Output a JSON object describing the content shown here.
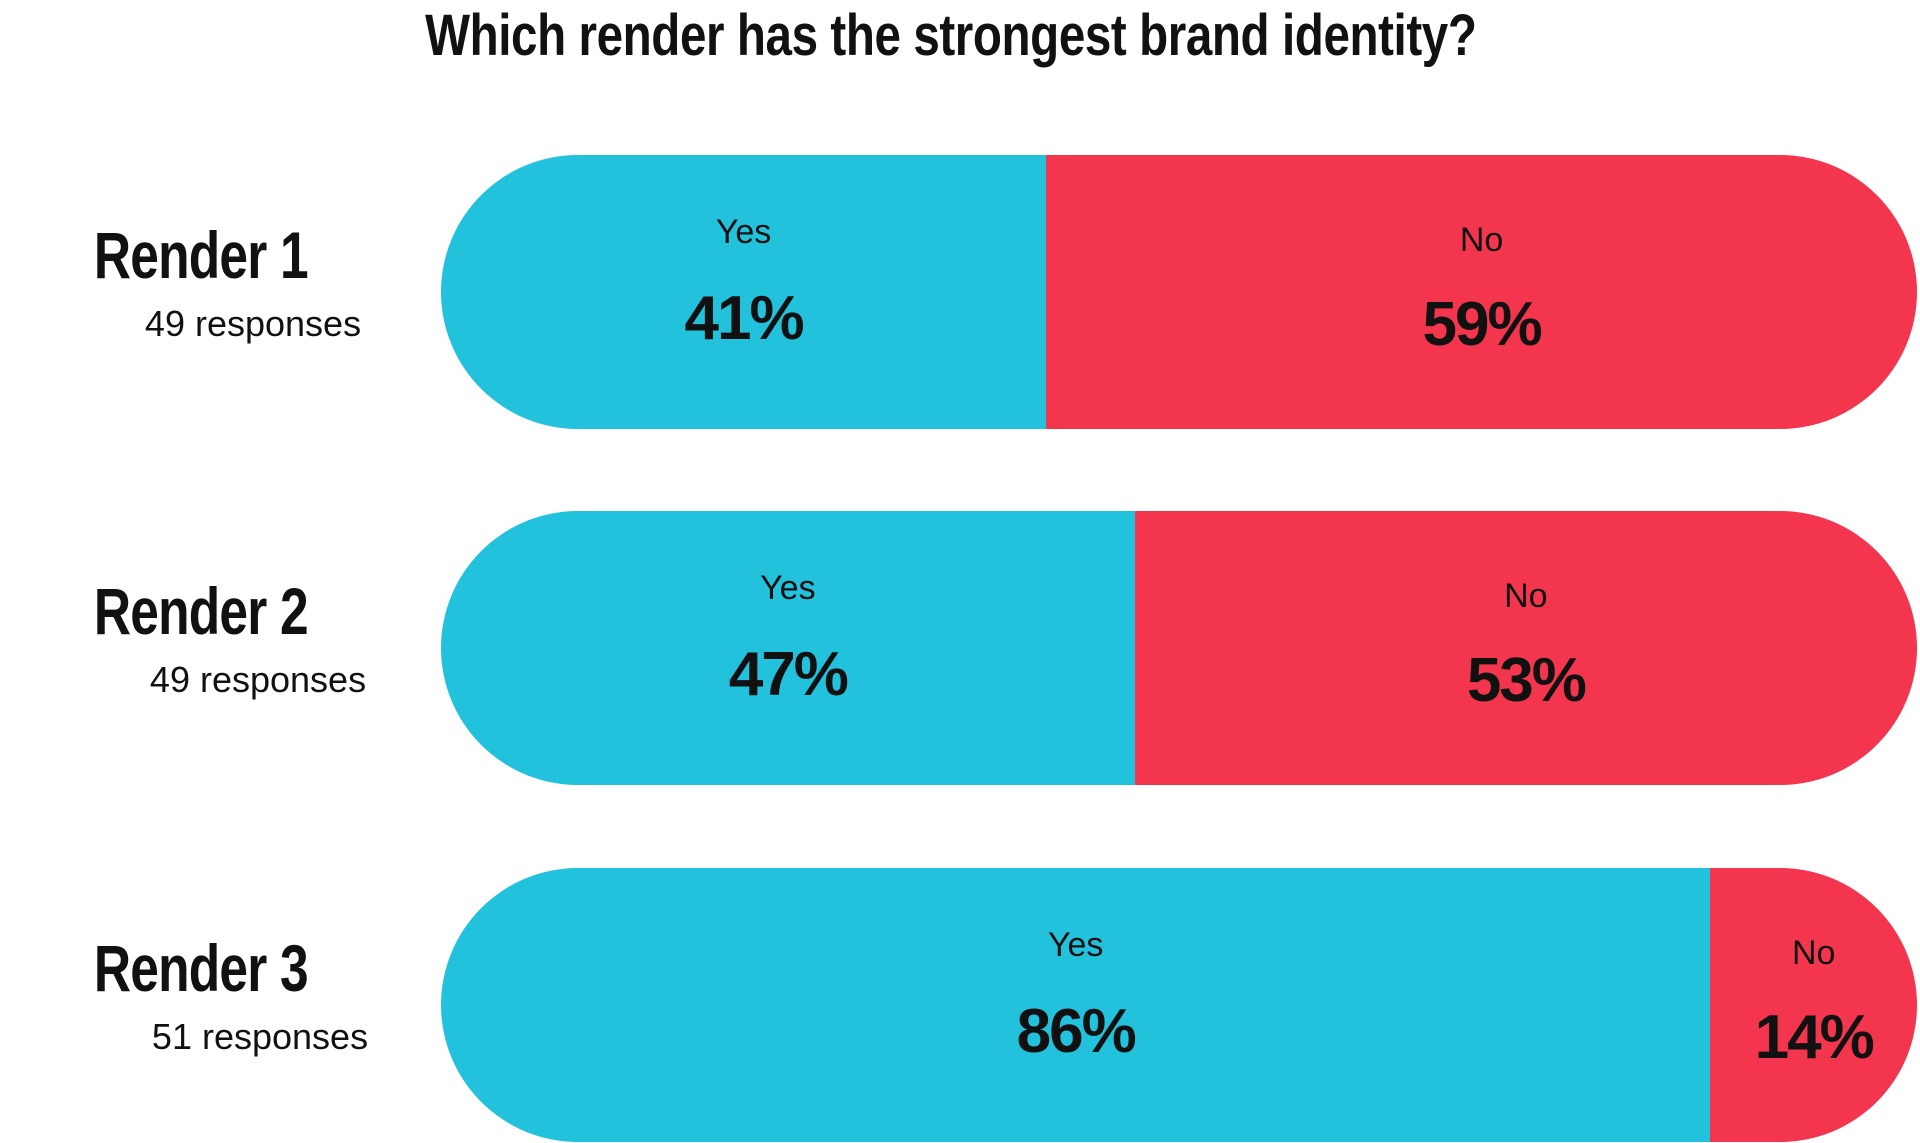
{
  "chart_data": {
    "type": "bar",
    "title": "Which render has the strongest brand identity?",
    "series_names": [
      "Yes",
      "No"
    ],
    "colors": {
      "Yes": "#22c1dc",
      "No": "#f3364d"
    },
    "rows": [
      {
        "label": "Render 1",
        "responses": "49 responses",
        "yes_label": "Yes",
        "yes": 41,
        "yes_text": "41%",
        "no_label": "No",
        "no": 59,
        "no_text": "59%"
      },
      {
        "label": "Render 2",
        "responses": "49 responses",
        "yes_label": "Yes",
        "yes": 47,
        "yes_text": "47%",
        "no_label": "No",
        "no": 53,
        "no_text": "53%"
      },
      {
        "label": "Render 3",
        "responses": "51 responses",
        "yes_label": "Yes",
        "yes": 86,
        "yes_text": "86%",
        "no_label": "No",
        "no": 14,
        "no_text": "14%"
      }
    ]
  }
}
